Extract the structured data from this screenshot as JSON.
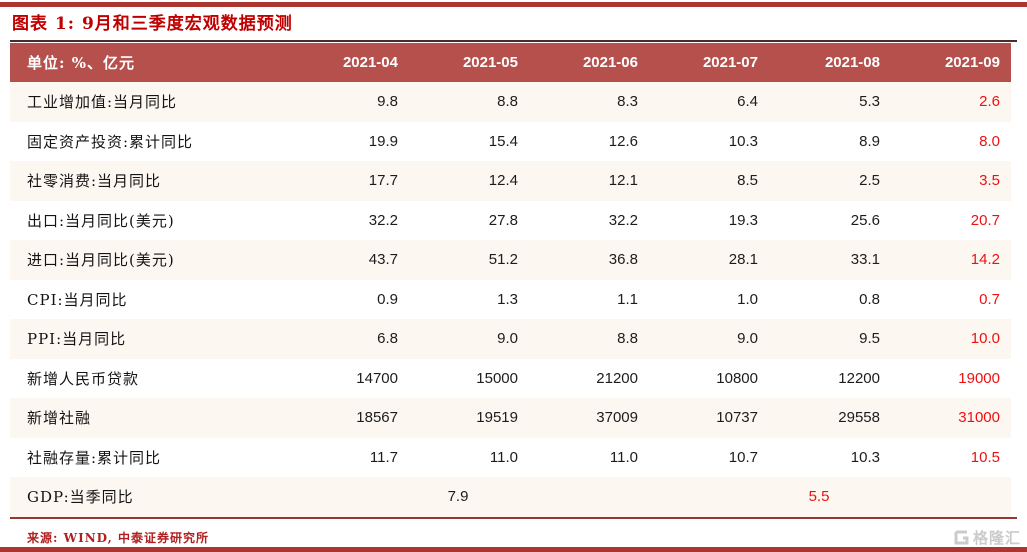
{
  "title": "图表 1: 9月和三季度宏观数据预测",
  "table": {
    "unit_label": "单位: %、亿元",
    "columns": [
      "2021-04",
      "2021-05",
      "2021-06",
      "2021-07",
      "2021-08",
      "2021-09"
    ],
    "forecast_column": "2021-09",
    "rows": [
      {
        "label": "工业增加值:当月同比",
        "values": [
          "9.8",
          "8.8",
          "8.3",
          "6.4",
          "5.3",
          "2.6"
        ]
      },
      {
        "label": "固定资产投资:累计同比",
        "values": [
          "19.9",
          "15.4",
          "12.6",
          "10.3",
          "8.9",
          "8.0"
        ]
      },
      {
        "label": "社零消费:当月同比",
        "values": [
          "17.7",
          "12.4",
          "12.1",
          "8.5",
          "2.5",
          "3.5"
        ]
      },
      {
        "label": "出口:当月同比(美元)",
        "values": [
          "32.2",
          "27.8",
          "32.2",
          "19.3",
          "25.6",
          "20.7"
        ]
      },
      {
        "label": "进口:当月同比(美元)",
        "values": [
          "43.7",
          "51.2",
          "36.8",
          "28.1",
          "33.1",
          "14.2"
        ]
      },
      {
        "label": "CPI:当月同比",
        "values": [
          "0.9",
          "1.3",
          "1.1",
          "1.0",
          "0.8",
          "0.7"
        ]
      },
      {
        "label": "PPI:当月同比",
        "values": [
          "6.8",
          "9.0",
          "8.8",
          "9.0",
          "9.5",
          "10.0"
        ]
      },
      {
        "label": "新增人民币贷款",
        "values": [
          "14700",
          "15000",
          "21200",
          "10800",
          "12200",
          "19000"
        ]
      },
      {
        "label": "新增社融",
        "values": [
          "18567",
          "19519",
          "37009",
          "10737",
          "29558",
          "31000"
        ]
      },
      {
        "label": "社融存量:累计同比",
        "values": [
          "11.7",
          "11.0",
          "11.0",
          "10.7",
          "10.3",
          "10.5"
        ]
      },
      {
        "label": "GDP:当季同比",
        "merged": true,
        "values": [
          "7.9",
          "5.5"
        ]
      }
    ]
  },
  "footer": {
    "source": "来源: WIND, 中泰证券研究所",
    "watermark": "格隆汇"
  },
  "colors": {
    "header_bg": "#b5504c",
    "accent_bar": "#ac3532",
    "title_red": "#c00000",
    "forecast_red": "#ee1111",
    "row_alt_bg": "#fdf7f1"
  }
}
